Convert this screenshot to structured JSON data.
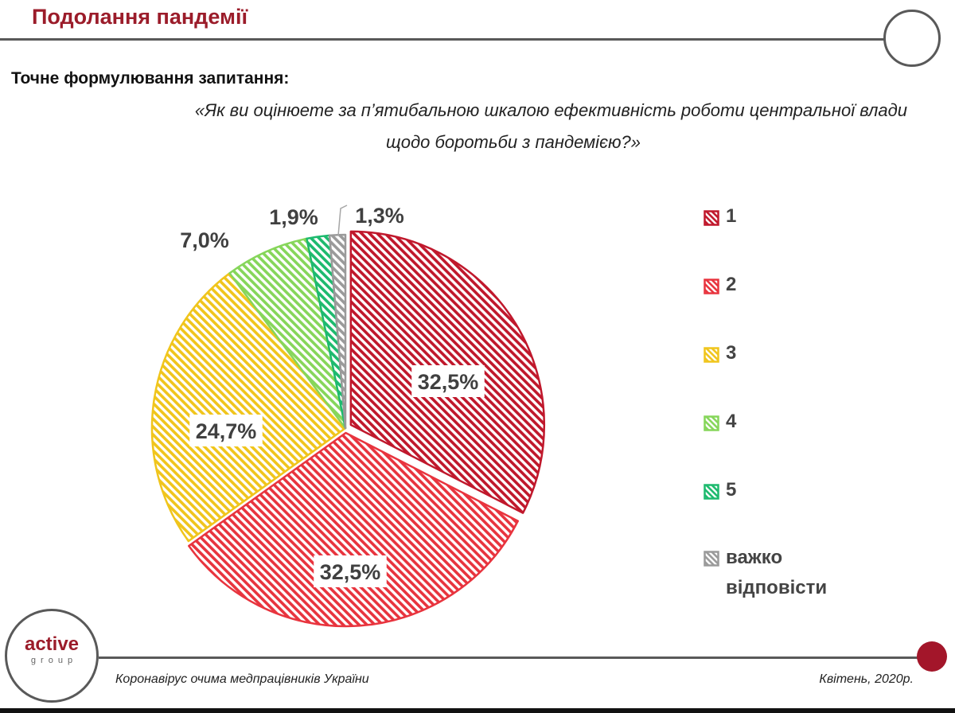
{
  "header": {
    "title": "Подолання пандемії"
  },
  "question": {
    "label": "Точне формулювання запитання:",
    "line1": "«Як ви оцінюете за п’ятибальною шкалою ефективність роботи  центральної влади",
    "line2": "щодо боротьби з пандемією?»"
  },
  "chart_data": {
    "type": "pie",
    "categories": [
      "1",
      "2",
      "3",
      "4",
      "5",
      "важко відповісти"
    ],
    "values": [
      32.5,
      32.5,
      24.7,
      7.0,
      1.9,
      1.3
    ],
    "labels": [
      "32,5%",
      "32,5%",
      "24,7%",
      "7,0%",
      "1,9%",
      "1,3%"
    ],
    "colors": [
      "#c0182c",
      "#e8343e",
      "#f0c51c",
      "#86d65a",
      "#1dba6e",
      "#9a9a9a"
    ],
    "legend_position": "right",
    "pattern": "diagonal-hatch"
  },
  "legend": {
    "items": [
      {
        "label": "1"
      },
      {
        "label": "2"
      },
      {
        "label": "3"
      },
      {
        "label": "4"
      },
      {
        "label": "5"
      },
      {
        "label_line1": "важко",
        "label_line2": "відповісти"
      }
    ]
  },
  "footer": {
    "logo_word": "active",
    "logo_sub": "group",
    "left_text": "Коронавірус очима медпрацівників України",
    "right_text": "Квітень, 2020р."
  }
}
